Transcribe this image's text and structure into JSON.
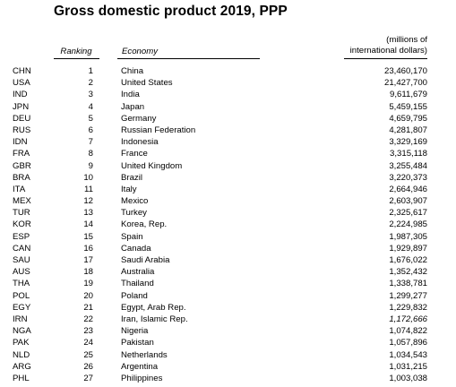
{
  "title": "Gross domestic product 2019, PPP",
  "headers": {
    "ranking": "Ranking",
    "economy": "Economy",
    "units_line1": "(millions of",
    "units_line2": "international dollars)"
  },
  "rows": [
    {
      "code": "CHN",
      "rank": "1",
      "economy": "China",
      "value": "23,460,170"
    },
    {
      "code": "USA",
      "rank": "2",
      "economy": "United States",
      "value": "21,427,700"
    },
    {
      "code": "IND",
      "rank": "3",
      "economy": "India",
      "value": "9,611,679"
    },
    {
      "code": "JPN",
      "rank": "4",
      "economy": "Japan",
      "value": "5,459,155"
    },
    {
      "code": "DEU",
      "rank": "5",
      "economy": "Germany",
      "value": "4,659,795"
    },
    {
      "code": "RUS",
      "rank": "6",
      "economy": "Russian Federation",
      "value": "4,281,807"
    },
    {
      "code": "IDN",
      "rank": "7",
      "economy": "Indonesia",
      "value": "3,329,169"
    },
    {
      "code": "FRA",
      "rank": "8",
      "economy": "France",
      "value": "3,315,118"
    },
    {
      "code": "GBR",
      "rank": "9",
      "economy": "United Kingdom",
      "value": "3,255,484"
    },
    {
      "code": "BRA",
      "rank": "10",
      "economy": "Brazil",
      "value": "3,220,373"
    },
    {
      "code": "ITA",
      "rank": "11",
      "economy": "Italy",
      "value": "2,664,946"
    },
    {
      "code": "MEX",
      "rank": "12",
      "economy": "Mexico",
      "value": "2,603,907"
    },
    {
      "code": "TUR",
      "rank": "13",
      "economy": "Turkey",
      "value": "2,325,617"
    },
    {
      "code": "KOR",
      "rank": "14",
      "economy": "Korea, Rep.",
      "value": "2,224,985"
    },
    {
      "code": "ESP",
      "rank": "15",
      "economy": "Spain",
      "value": "1,987,305"
    },
    {
      "code": "CAN",
      "rank": "16",
      "economy": "Canada",
      "value": "1,929,897"
    },
    {
      "code": "SAU",
      "rank": "17",
      "economy": "Saudi Arabia",
      "value": "1,676,022"
    },
    {
      "code": "AUS",
      "rank": "18",
      "economy": "Australia",
      "value": "1,352,432"
    },
    {
      "code": "THA",
      "rank": "19",
      "economy": "Thailand",
      "value": "1,338,781"
    },
    {
      "code": "POL",
      "rank": "20",
      "economy": "Poland",
      "value": "1,299,277"
    },
    {
      "code": "EGY",
      "rank": "21",
      "economy": "Egypt, Arab Rep.",
      "value": "1,229,832"
    },
    {
      "code": "IRN",
      "rank": "22",
      "economy": "Iran, Islamic Rep.",
      "value": "1,172,666",
      "italic": true
    },
    {
      "code": "NGA",
      "rank": "23",
      "economy": "Nigeria",
      "value": "1,074,822"
    },
    {
      "code": "PAK",
      "rank": "24",
      "economy": "Pakistan",
      "value": "1,057,896"
    },
    {
      "code": "NLD",
      "rank": "25",
      "economy": "Netherlands",
      "value": "1,034,543"
    },
    {
      "code": "ARG",
      "rank": "26",
      "economy": "Argentina",
      "value": "1,031,215"
    },
    {
      "code": "PHL",
      "rank": "27",
      "economy": "Philippines",
      "value": "1,003,038"
    }
  ]
}
